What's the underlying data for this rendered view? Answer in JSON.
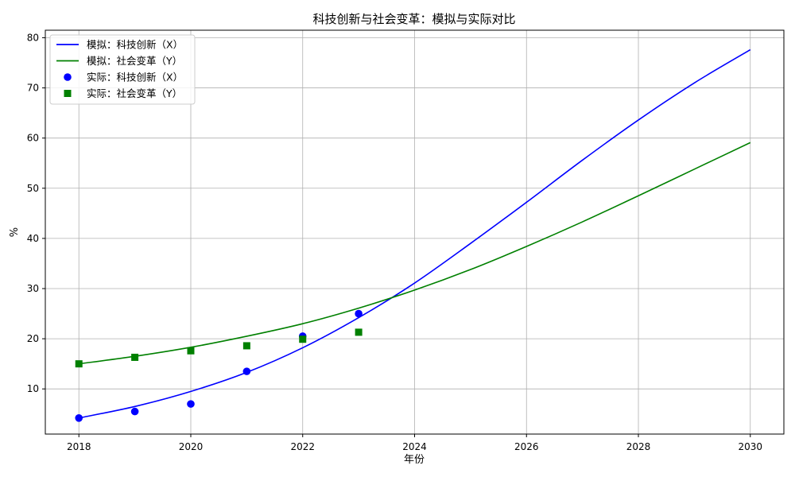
{
  "chart_data": {
    "type": "line",
    "title": "科技创新与社会变革：模拟与实际对比",
    "xlabel": "年份",
    "ylabel": "%",
    "xlim": [
      2017.4,
      2030.6
    ],
    "ylim": [
      1,
      81.5
    ],
    "xticks": [
      2018,
      2020,
      2022,
      2024,
      2026,
      2028,
      2030
    ],
    "yticks": [
      10,
      20,
      30,
      40,
      50,
      60,
      70,
      80
    ],
    "grid": true,
    "legend_position": "top-left",
    "series": [
      {
        "name": "模拟：科技创新（X）",
        "kind": "line",
        "color": "#0000ff",
        "x": [
          2018,
          2019,
          2020,
          2021,
          2022,
          2023,
          2024,
          2025,
          2026,
          2027,
          2028,
          2029,
          2030
        ],
        "y": [
          4.2,
          6.5,
          9.5,
          13.3,
          18.2,
          24.2,
          31.1,
          39.0,
          47.2,
          55.6,
          63.6,
          71.0,
          77.6
        ]
      },
      {
        "name": "模拟：社会变革（Y）",
        "kind": "line",
        "color": "#008000",
        "x": [
          2018,
          2019,
          2020,
          2021,
          2022,
          2023,
          2024,
          2025,
          2026,
          2027,
          2028,
          2029,
          2030
        ],
        "y": [
          15.0,
          16.5,
          18.3,
          20.5,
          23.0,
          26.1,
          29.7,
          33.8,
          38.4,
          43.3,
          48.5,
          53.8,
          59.1
        ]
      },
      {
        "name": "实际：科技创新（X）",
        "kind": "scatter",
        "marker": "circle",
        "color": "#0000ff",
        "x": [
          2018,
          2019,
          2020,
          2021,
          2022,
          2023
        ],
        "y": [
          4.2,
          5.5,
          7.0,
          13.5,
          20.5,
          25.0
        ]
      },
      {
        "name": "实际：社会变革（Y）",
        "kind": "scatter",
        "marker": "square",
        "color": "#008000",
        "x": [
          2018,
          2019,
          2020,
          2021,
          2022,
          2023
        ],
        "y": [
          15.0,
          16.3,
          17.6,
          18.6,
          19.9,
          21.3
        ]
      }
    ]
  }
}
